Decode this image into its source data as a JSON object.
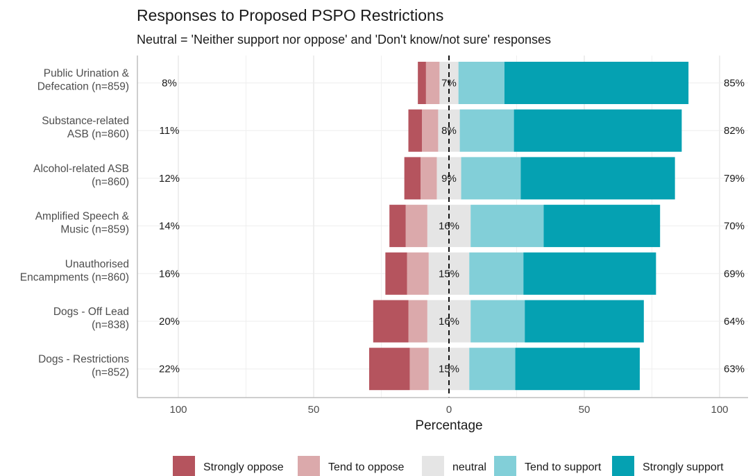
{
  "chart_data": {
    "type": "bar",
    "orientation": "horizontal",
    "stacked": "diverging",
    "title": "Responses to Proposed PSPO Restrictions",
    "subtitle": "Neutral = 'Neither support nor oppose' and 'Don't know/not sure' responses",
    "xlabel": "Percentage",
    "xlim": [
      -100,
      100
    ],
    "xticks": [
      -100,
      -50,
      0,
      50,
      100
    ],
    "xtick_labels": [
      "100",
      "50",
      "0",
      "50",
      "100"
    ],
    "categories": [
      "Public Urination & Defecation (n=859)",
      "Substance-related ASB (n=860)",
      "Alcohol-related ASB (n=860)",
      "Amplified Speech & Music (n=859)",
      "Unauthorised Encampments (n=860)",
      "Dogs - Off Lead (n=838)",
      "Dogs - Restrictions (n=852)"
    ],
    "category_lines": [
      [
        "Public Urination &",
        "Defecation (n=859)"
      ],
      [
        "Substance-related",
        "ASB (n=860)"
      ],
      [
        "Alcohol-related ASB",
        "(n=860)"
      ],
      [
        "Amplified Speech &",
        "Music (n=859)"
      ],
      [
        "Unauthorised",
        "Encampments (n=860)"
      ],
      [
        "Dogs - Off Lead",
        "(n=838)"
      ],
      [
        "Dogs - Restrictions",
        "(n=852)"
      ]
    ],
    "series": [
      {
        "name": "Strongly oppose",
        "color": "#b5545e",
        "values": [
          3,
          5,
          6,
          6,
          8,
          13,
          15
        ]
      },
      {
        "name": "Tend to oppose",
        "color": "#dba9ab",
        "values": [
          5,
          6,
          6,
          8,
          8,
          7,
          7
        ]
      },
      {
        "name": "neutral",
        "color": "#e5e5e5",
        "values": [
          7,
          8,
          9,
          16,
          15,
          16,
          15
        ]
      },
      {
        "name": "Tend to support",
        "color": "#82cfd8",
        "values": [
          17,
          20,
          22,
          27,
          20,
          20,
          17
        ]
      },
      {
        "name": "Strongly support",
        "color": "#05a1b2",
        "values": [
          68,
          62,
          57,
          43,
          49,
          44,
          46
        ]
      }
    ],
    "oppose_labels": [
      "8%",
      "11%",
      "12%",
      "14%",
      "16%",
      "20%",
      "22%"
    ],
    "neutral_labels": [
      "7%",
      "8%",
      "9%",
      "16%",
      "15%",
      "16%",
      "15%"
    ],
    "support_labels": [
      "85%",
      "82%",
      "79%",
      "70%",
      "69%",
      "64%",
      "63%"
    ],
    "grid": true,
    "zero_line": "dashed",
    "legend_position": "bottom"
  }
}
